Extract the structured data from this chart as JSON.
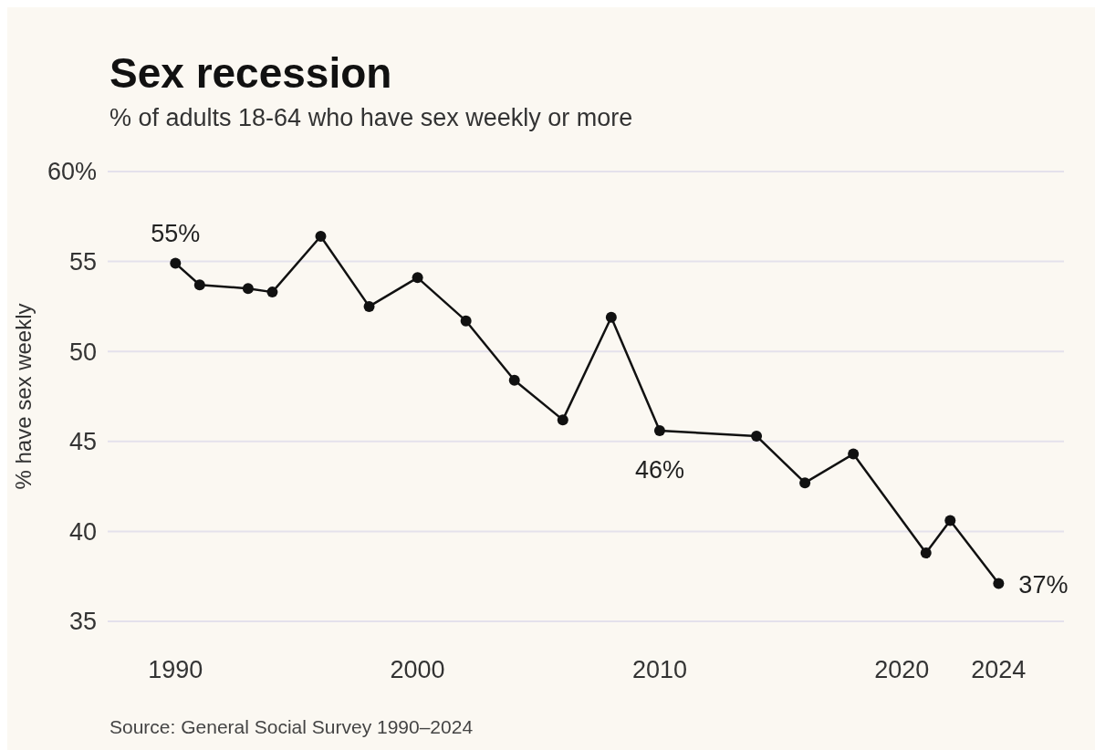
{
  "chart_data": {
    "type": "line",
    "title": "Sex recession",
    "subtitle": "% of adults 18-64 who have sex weekly or more",
    "ylabel": "% have sex weekly",
    "x": [
      1990,
      1991,
      1993,
      1994,
      1996,
      1998,
      2000,
      2002,
      2004,
      2006,
      2008,
      2010,
      2014,
      2016,
      2018,
      2021,
      2022,
      2024
    ],
    "series": [
      {
        "color": "#111111",
        "values": [
          54.9,
          53.7,
          53.5,
          53.3,
          56.4,
          52.5,
          54.1,
          51.7,
          48.4,
          46.2,
          51.9,
          45.6,
          45.3,
          42.7,
          44.3,
          38.8,
          40.6,
          37.1
        ]
      }
    ],
    "xlim": [
      1987.2,
      2026.7
    ],
    "xticks": [
      1990,
      2000,
      2010,
      2020,
      2024
    ],
    "ylim": [
      35,
      60
    ],
    "yticks": [
      35,
      40,
      45,
      50,
      55,
      {
        "value": 60,
        "label": "60%"
      }
    ],
    "grid": "y",
    "marker": "circle",
    "line_style": "solid",
    "annotations": [
      {
        "text": "55%",
        "x": 1990,
        "y": 54.9
      },
      {
        "text": "46%",
        "x": 2010,
        "y": 45.6
      },
      {
        "text": "37%",
        "x": 2024,
        "y": 37.1
      },
      "Source: General Social Survey 1990–2024"
    ]
  }
}
